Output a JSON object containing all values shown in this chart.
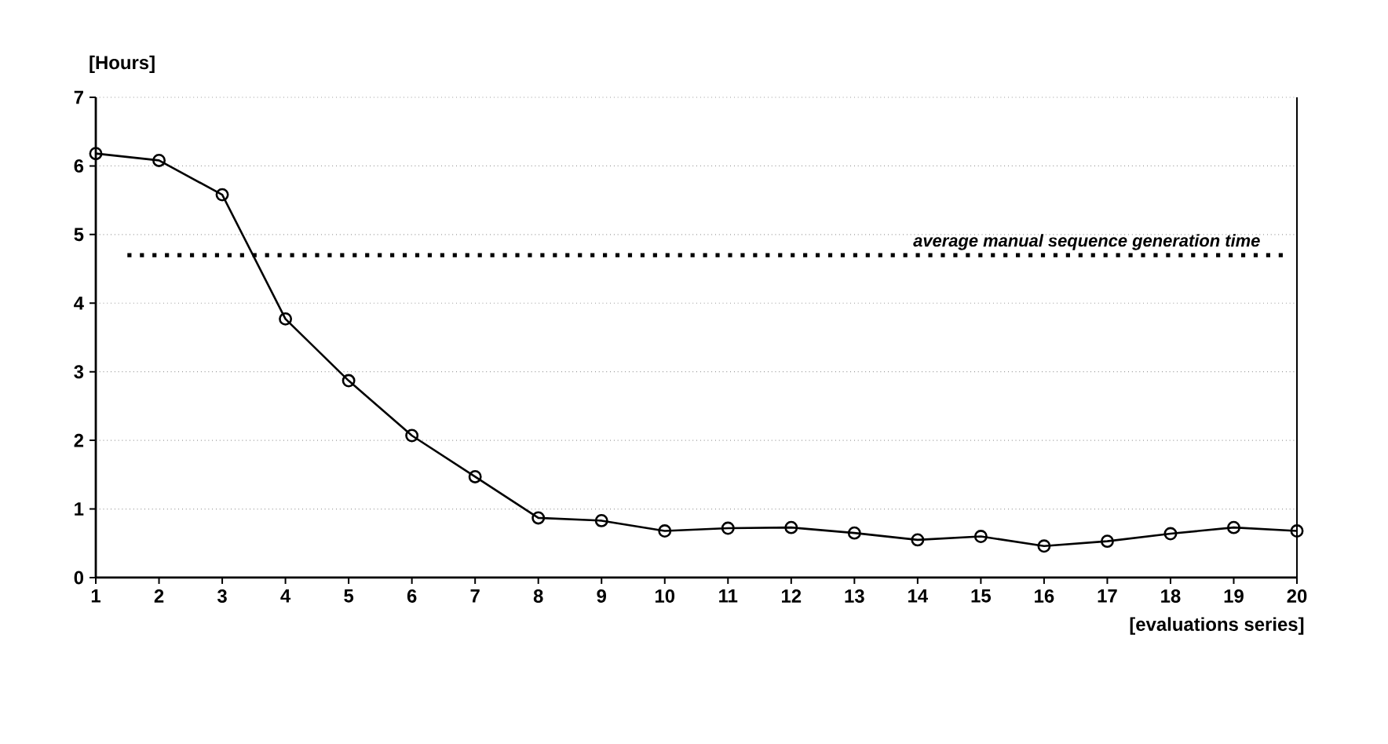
{
  "chart_data": {
    "type": "line",
    "ylabel": "[Hours]",
    "xlabel": "[evaluations series]",
    "x": [
      1,
      2,
      3,
      4,
      5,
      6,
      7,
      8,
      9,
      10,
      11,
      12,
      13,
      14,
      15,
      16,
      17,
      18,
      19,
      20
    ],
    "series": [
      {
        "color": "#000000",
        "values": [
          6.18,
          6.08,
          5.58,
          3.77,
          2.87,
          2.07,
          1.47,
          0.87,
          0.83,
          0.68,
          0.72,
          0.73,
          0.65,
          0.55,
          0.6,
          0.46,
          0.53,
          0.64,
          0.73,
          0.68
        ]
      }
    ],
    "xlim": [
      1,
      20
    ],
    "xticks": [
      1,
      2,
      3,
      4,
      5,
      6,
      7,
      8,
      9,
      10,
      11,
      12,
      13,
      14,
      15,
      16,
      17,
      18,
      19,
      20
    ],
    "ylim": [
      0,
      7
    ],
    "yticks": [
      0,
      1,
      2,
      3,
      4,
      5,
      6,
      7
    ],
    "grid": "y",
    "marker": "circle",
    "line_style": "solid",
    "ref_lines": [
      {
        "axis": "y",
        "value": 4.7,
        "label": "average manual sequence generation time",
        "line_style": "dotted",
        "color": "#000000"
      }
    ]
  }
}
